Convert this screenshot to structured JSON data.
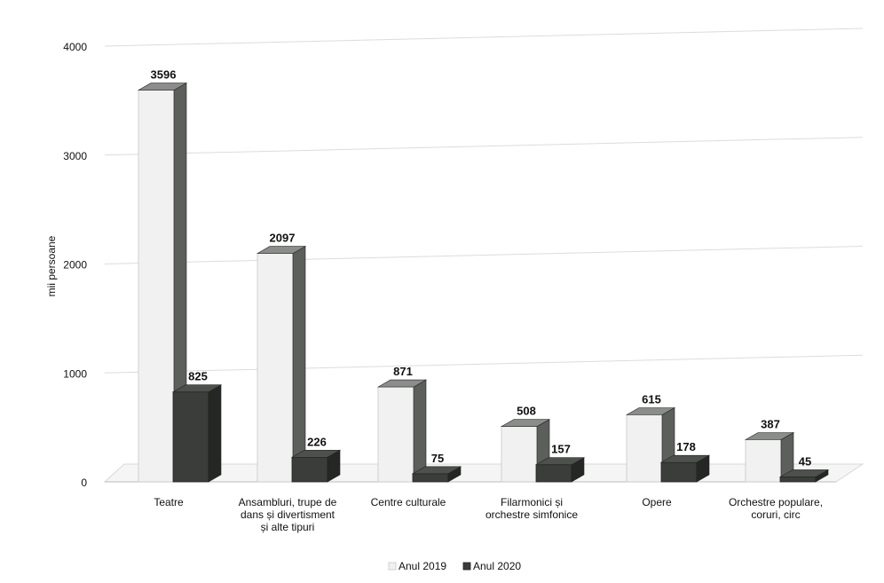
{
  "chart_data": {
    "type": "bar",
    "categories": [
      [
        "Teatre"
      ],
      [
        "Ansambluri, trupe de",
        "dans și divertisment",
        "și alte tipuri"
      ],
      [
        "Centre culturale"
      ],
      [
        "Filarmonici și",
        "orchestre simfonice"
      ],
      [
        "Opere"
      ],
      [
        "Orchestre populare,",
        "coruri, circ"
      ]
    ],
    "series": [
      {
        "name": "Anul 2019",
        "values": [
          3596,
          2097,
          871,
          508,
          615,
          387
        ],
        "color": "#f1f1f1"
      },
      {
        "name": "Anul 2020",
        "values": [
          825,
          226,
          75,
          157,
          178,
          45
        ],
        "color": "#3a3d3a"
      }
    ],
    "xlabel": "",
    "ylabel": "mii persoane",
    "ylim": [
      0,
      4000
    ],
    "yticks": [
      0,
      1000,
      2000,
      3000,
      4000
    ],
    "grid": true,
    "legend": "bottom"
  }
}
